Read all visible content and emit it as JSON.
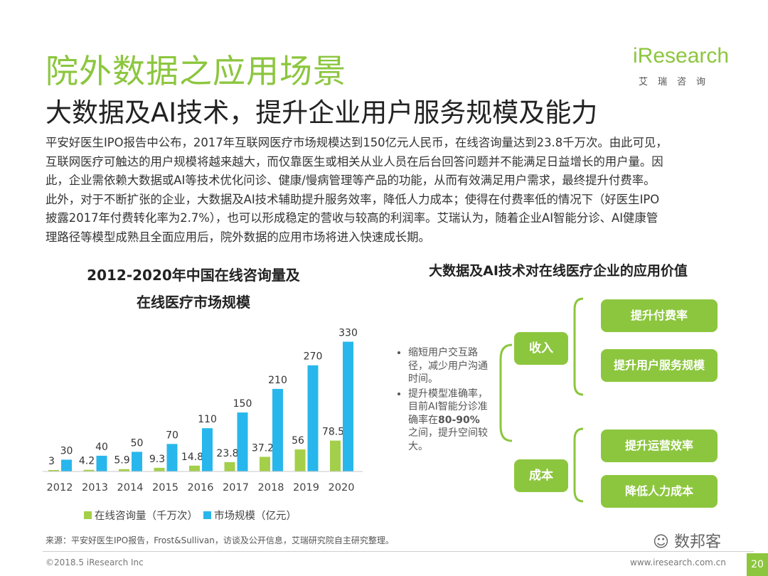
{
  "title": "院外数据之应用场景",
  "subtitle": "大数据及AI技术，提升企业用户服务规模及能力",
  "logo": {
    "brand": "iResearch",
    "cn": "艾瑞咨询"
  },
  "body_lines": [
    "平安好医生IPO报告中公布，2017年互联网医疗市场规模达到150亿元人民币，在线咨询量达到23.8千万次。由此可见，",
    "互联网医疗可触达的用户规模将越来越大，而仅靠医生或相关从业人员在后台回答问题并不能满足日益增长的用户量。因",
    "此，企业需依赖大数据或AI等技术优化问诊、健康/慢病管理等产品的功能，从而有效满足用户需求，最终提升付费率。",
    "此外，对于不断扩张的企业，大数据及AI技术辅助提升服务效率，降低人力成本；使得在付费率低的情况下（好医生IPO",
    "披露2017年付费转化率为2.7%），也可以形成稳定的营收与较高的利润率。艾瑞认为，随着企业AI智能分诊、AI健康管",
    "理路径等模型成熟且全面应用后，院外数据的应用市场将进入快速成长期。"
  ],
  "chart_data": {
    "type": "bar",
    "title_line1": "2012-2020年中国在线咨询量及",
    "title_line2": "在线医疗市场规模",
    "categories": [
      "2012",
      "2013",
      "2014",
      "2015",
      "2016",
      "2017",
      "2018",
      "2019",
      "2020"
    ],
    "series": [
      {
        "name": "在线咨询量（千万次）",
        "color": "#a4cf4a",
        "values": [
          3,
          4.2,
          5.9,
          9.3,
          14.8,
          23.8,
          37.2,
          56,
          78.5
        ],
        "labels": [
          "3",
          "4.2",
          "5.9",
          "9.3",
          "14.8",
          "23.8",
          "37.2",
          "56",
          "78.5"
        ]
      },
      {
        "name": "市场规模（亿元）",
        "color": "#28b7ec",
        "values": [
          30,
          40,
          50,
          70,
          110,
          150,
          210,
          270,
          330
        ],
        "labels": [
          "30",
          "40",
          "50",
          "70",
          "110",
          "150",
          "210",
          "270",
          "330"
        ]
      }
    ],
    "ylim": [
      0,
      340
    ]
  },
  "diagram": {
    "title": "大数据及AI技术对在线医疗企业的应用价值",
    "bullet1": "缩短用户交互路径，减少用户沟通时间。",
    "bullet2_pre": "提升模型准确率，目前AI智能分诊准确率在",
    "bullet2_bold": "80-90%",
    "bullet2_post": "之间，提升空间较大。",
    "income": "收入",
    "cost": "成本",
    "income_items": [
      "提升付费率",
      "提升用户服务规模"
    ],
    "cost_items": [
      "提升运营效率",
      "降低人力成本"
    ]
  },
  "source": "来源：平安好医生IPO报告，Frost&Sullivan，访谈及公开信息，艾瑞研究院自主研究整理。",
  "footer_left": "©2018.5 iResearch Inc",
  "footer_right": "www.iresearch.com.cn",
  "page_number": "20",
  "watermark": "数邦客",
  "colors": {
    "accent": "#8cc63e",
    "blue": "#28b7ec"
  }
}
